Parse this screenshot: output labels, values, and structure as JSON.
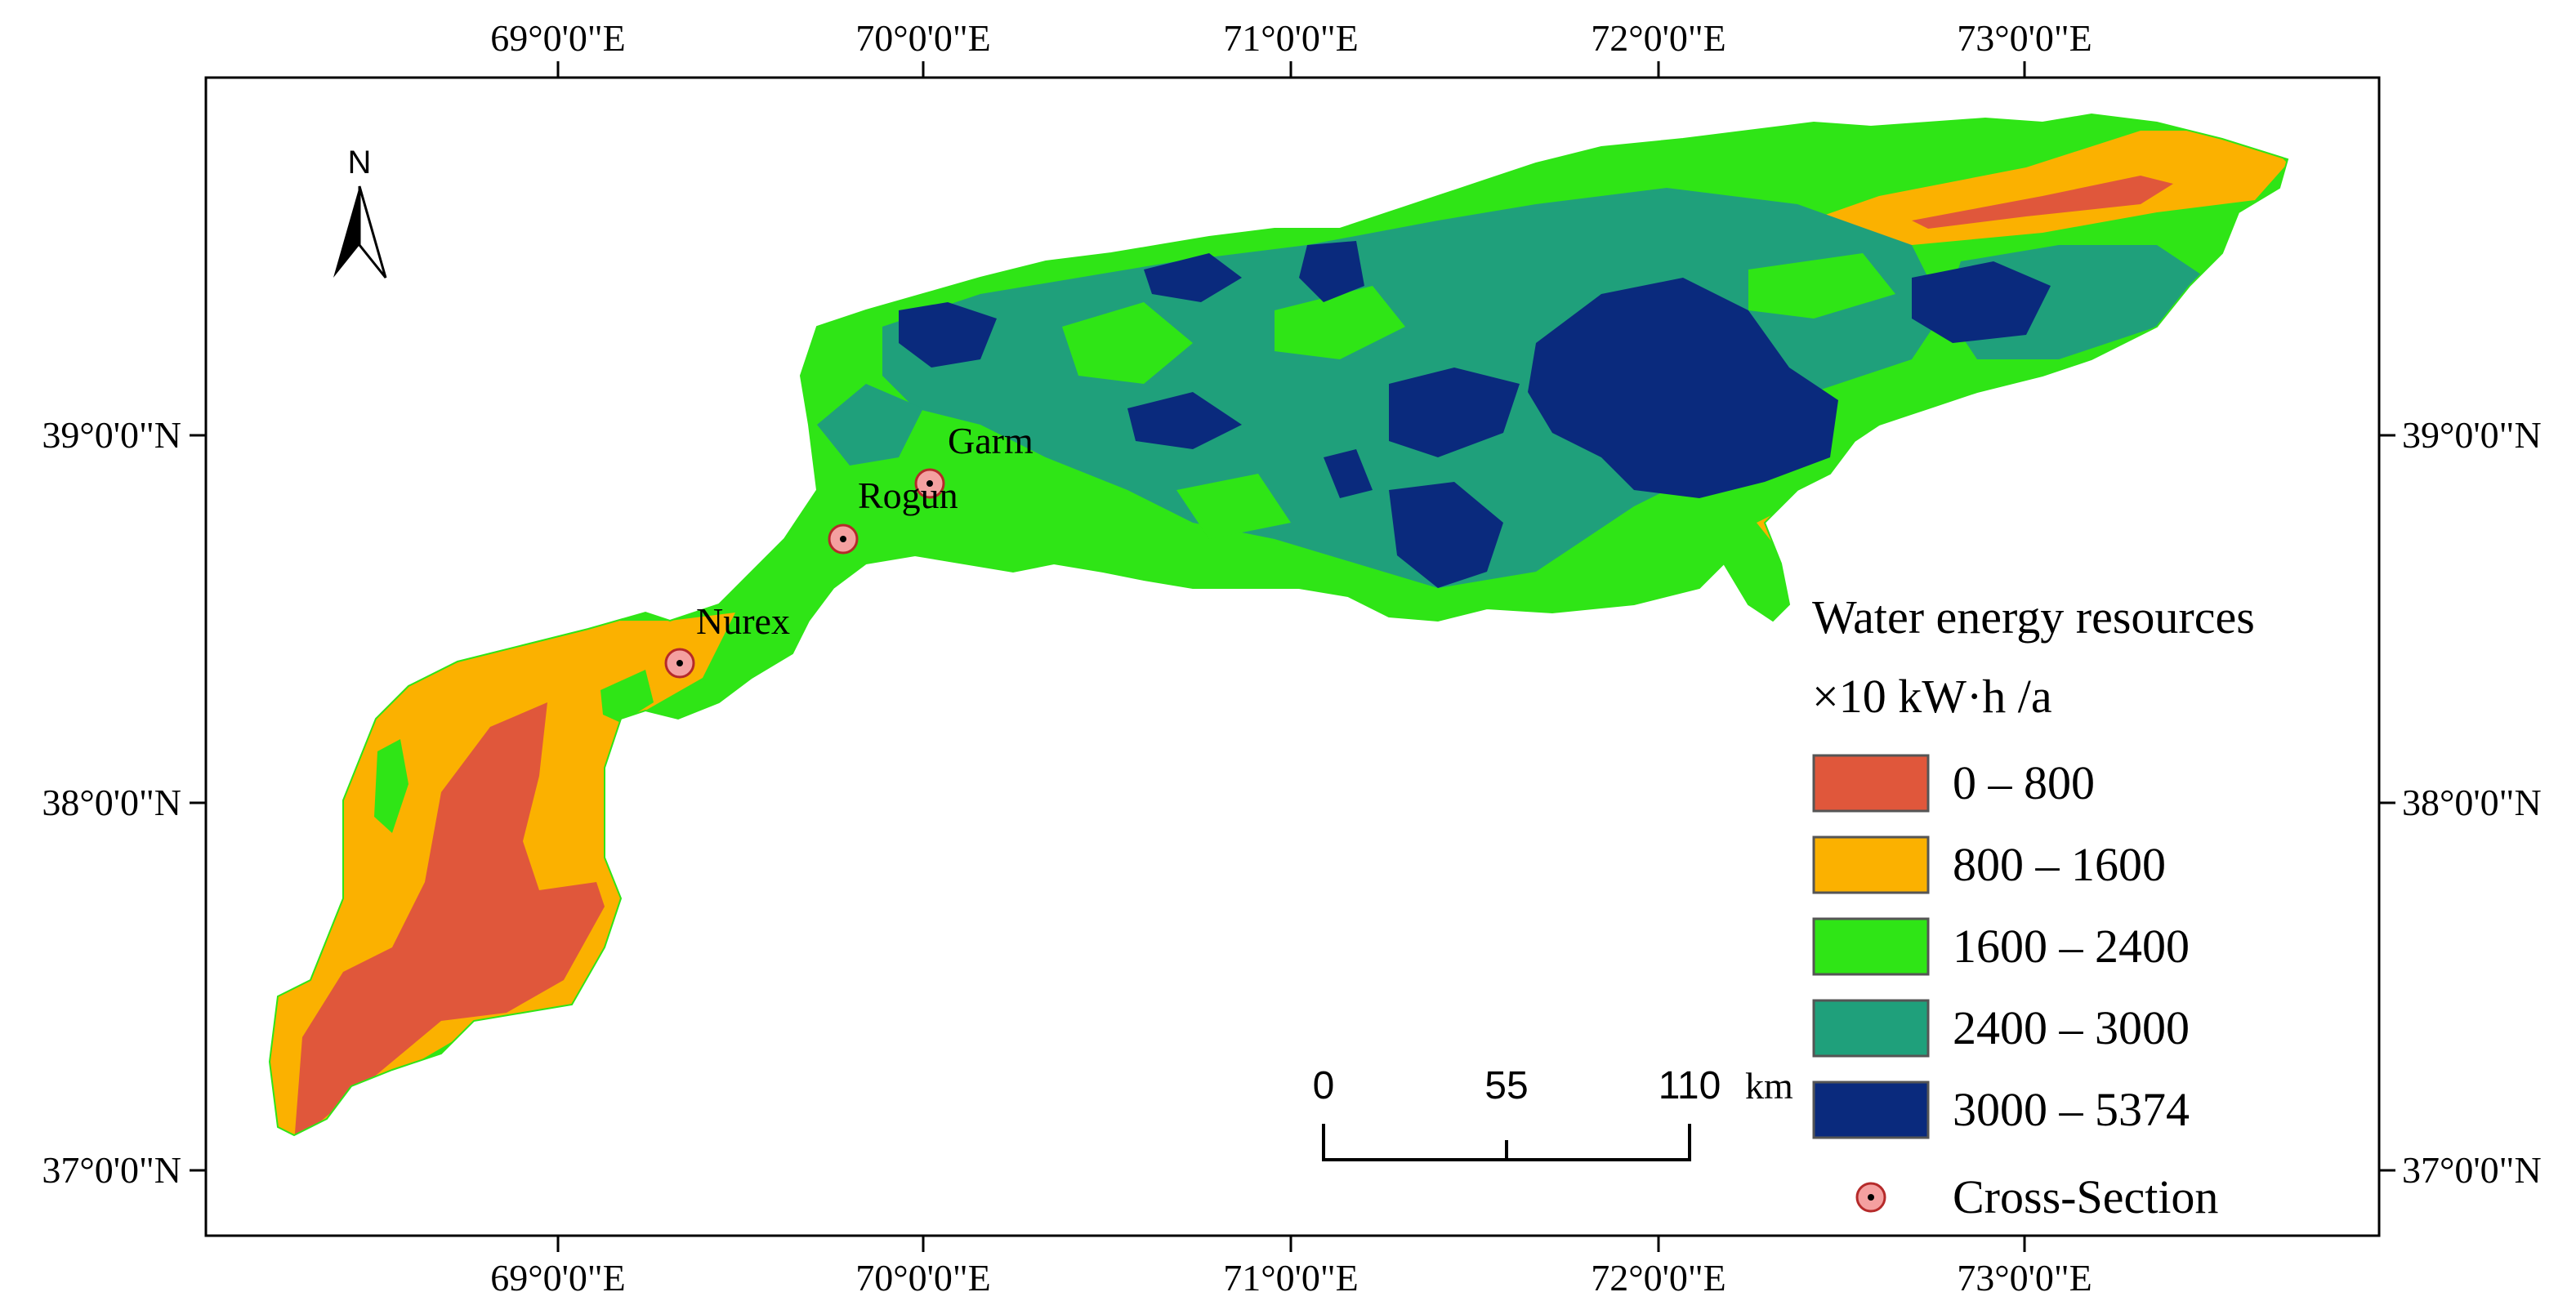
{
  "colors": {
    "c0_800": "#e0573b",
    "c800_1600": "#fbb100",
    "c1600_2400": "#2fe516",
    "c2400_3000": "#1fa07b",
    "c3000_5374": "#0a2a7d",
    "cross_section_fill": "#f4a0a0",
    "cross_section_stroke": "#b52a2a"
  },
  "graticule": {
    "top_labels": [
      "69°0'0\"E",
      "70°0'0\"E",
      "71°0'0\"E",
      "72°0'0\"E",
      "73°0'0\"E"
    ],
    "bottom_labels": [
      "69°0'0\"E",
      "70°0'0\"E",
      "71°0'0\"E",
      "72°0'0\"E",
      "73°0'0\"E"
    ],
    "left_labels": [
      "39°0'0\"N",
      "38°0'0\"N",
      "37°0'0\"N"
    ],
    "right_labels": [
      "39°0'0\"N",
      "38°0'0\"N",
      "37°0'0\"N"
    ]
  },
  "north_arrow": {
    "label": "N"
  },
  "cross_sections": [
    {
      "name": "Garm"
    },
    {
      "name": "Rogun"
    },
    {
      "name": "Nurex"
    }
  ],
  "scale_bar": {
    "labels": [
      "0",
      "55",
      "110"
    ],
    "unit": "km"
  },
  "legend": {
    "title_line1": "Water energy resources",
    "title_line2": "×10  kW·h /a",
    "classes": [
      {
        "label": "0 – 800",
        "color_key": "c0_800"
      },
      {
        "label": "800 – 1600",
        "color_key": "c800_1600"
      },
      {
        "label": "1600 – 2400",
        "color_key": "c1600_2400"
      },
      {
        "label": "2400 – 3000",
        "color_key": "c2400_3000"
      },
      {
        "label": "3000 – 5374",
        "color_key": "c3000_5374"
      }
    ],
    "cross_section_label": "Cross-Section"
  }
}
